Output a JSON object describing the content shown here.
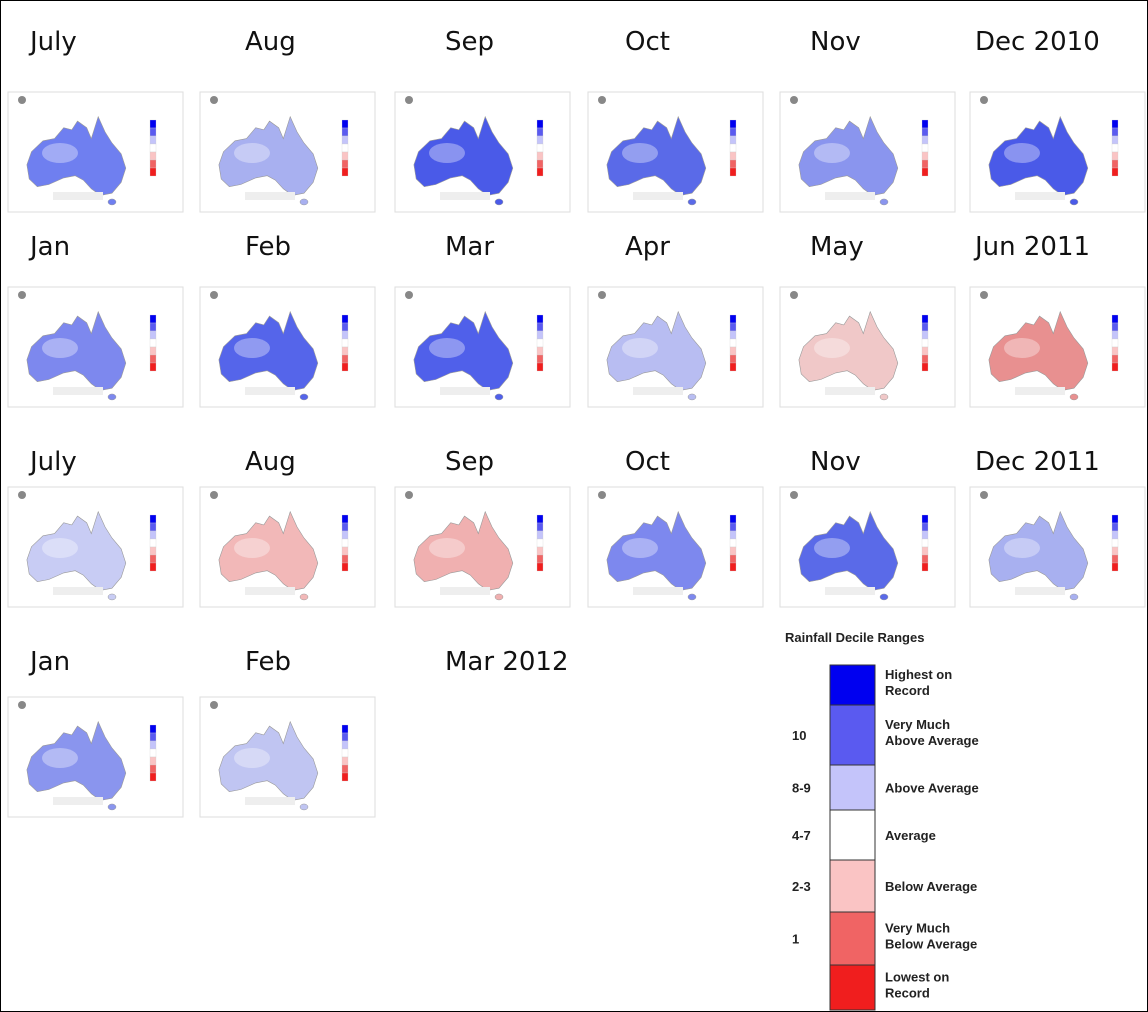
{
  "panels": [
    {
      "label": "July",
      "color": "#6f7ff0"
    },
    {
      "label": "Aug",
      "color": "#a8b0f0"
    },
    {
      "label": "Sep",
      "color": "#4a5ae8"
    },
    {
      "label": "Oct",
      "color": "#5a6ae8"
    },
    {
      "label": "Nov",
      "color": "#8a95ee"
    },
    {
      "label": "Dec 2010",
      "color": "#4a5ae8"
    },
    {
      "label": "Jan",
      "color": "#7d88ee"
    },
    {
      "label": "Feb",
      "color": "#5565ea"
    },
    {
      "label": "Mar",
      "color": "#5060ea"
    },
    {
      "label": "Apr",
      "color": "#b8bdf2"
    },
    {
      "label": "May",
      "color": "#f0c8c8"
    },
    {
      "label": "Jun 2011",
      "color": "#e89090"
    },
    {
      "label": "July",
      "color": "#c8ccf4"
    },
    {
      "label": "Aug",
      "color": "#f2b8b8"
    },
    {
      "label": "Sep",
      "color": "#f0b0b0"
    },
    {
      "label": "Oct",
      "color": "#7d88ee"
    },
    {
      "label": "Nov",
      "color": "#5a6ae8"
    },
    {
      "label": "Dec 2011",
      "color": "#a8b0f0"
    },
    {
      "label": "Jan",
      "color": "#8a95ee"
    },
    {
      "label": "Feb",
      "color": "#c0c5f2"
    },
    {
      "label": "Mar 2012"
    }
  ],
  "legend": {
    "title": "Rainfall Decile Ranges",
    "items": [
      {
        "label": "Highest on Record",
        "color": "#0000f0"
      },
      {
        "decile": "10",
        "label": "Very Much Above Average",
        "color": "#5a5af0"
      },
      {
        "decile": "8-9",
        "label": "Above Average",
        "color": "#c4c4fa"
      },
      {
        "decile": "4-7",
        "label": "Average",
        "color": "#ffffff"
      },
      {
        "decile": "2-3",
        "label": "Below Average",
        "color": "#fac4c4"
      },
      {
        "decile": "1",
        "label": "Very Much Below Average",
        "color": "#f06464"
      },
      {
        "label": "Lowest on Record",
        "color": "#f01e1e"
      }
    ]
  }
}
